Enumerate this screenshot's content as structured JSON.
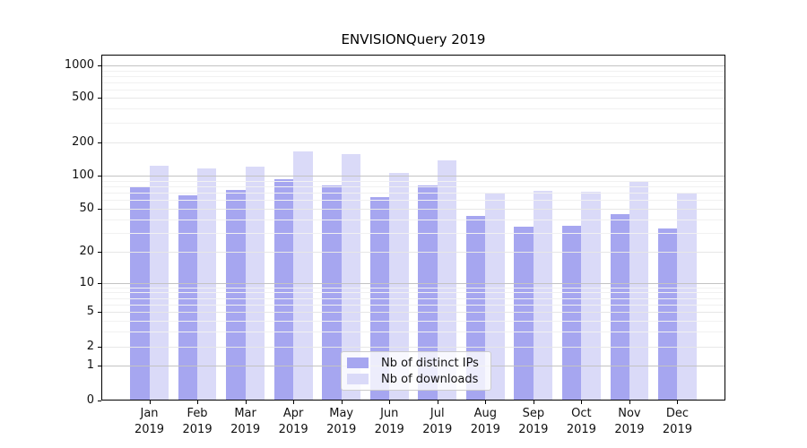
{
  "chart_data": {
    "type": "bar",
    "title": "ENVISIONQuery 2019",
    "categories": [
      "Jan 2019",
      "Feb 2019",
      "Mar 2019",
      "Apr 2019",
      "May 2019",
      "Jun 2019",
      "Jul 2019",
      "Aug 2019",
      "Sep 2019",
      "Oct 2019",
      "Nov 2019",
      "Dec 2019"
    ],
    "series": [
      {
        "name": "Nb of distinct IPs",
        "color": "#a6a6f0",
        "values": [
          80,
          66,
          74,
          93,
          82,
          64,
          81,
          43,
          34,
          35,
          45,
          33
        ]
      },
      {
        "name": "Nb of downloads",
        "color": "#dadaf8",
        "values": [
          123,
          116,
          121,
          167,
          157,
          105,
          138,
          70,
          73,
          71,
          90,
          70
        ]
      }
    ],
    "xlabel": "",
    "ylabel": "",
    "yscale": "symlog",
    "yticks": [
      0,
      1,
      2,
      5,
      10,
      20,
      50,
      100,
      200,
      500,
      1000
    ],
    "ylim": [
      0,
      1300
    ],
    "grid": "both",
    "legend_position": "lower center",
    "colors": {
      "grid_major": "#c3c3c3",
      "grid_mid": "#e7e7e7",
      "grid_minor": "#f1f1f1",
      "spine": "#000000",
      "tick_label": "#111111",
      "legend_border": "#cccccc"
    }
  }
}
